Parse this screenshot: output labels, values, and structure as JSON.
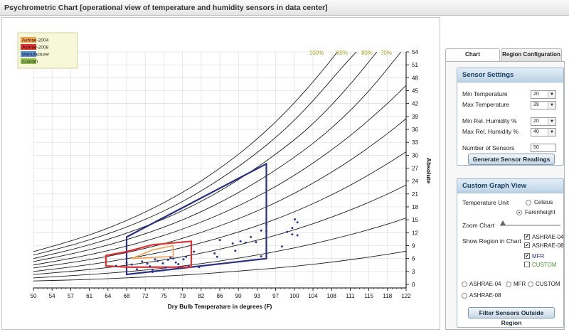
{
  "title": "Psychrometric Chart [operational view of temperature and humidity sensors in data center]",
  "colors": {
    "ashrae2004": "#f0a050",
    "ashrae2008": "#e03232",
    "manufacturer": "#2a2e85",
    "custom": "#90c050",
    "humidity_curve": "#1a1a1a",
    "rh_label": "#a8a820",
    "points": "#2a3a8a"
  },
  "chart_data": {
    "type": "scatter",
    "xlabel": "Dry Bulb Temperature in degrees (F)",
    "ylabel": "Absolute",
    "x_ticks": [
      "50",
      "54",
      "57",
      "61",
      "64",
      "68",
      "72",
      "75",
      "79",
      "82",
      "86",
      "90",
      "93",
      "97",
      "100",
      "104",
      "108",
      "111",
      "115",
      "118",
      "122"
    ],
    "y_ticks": [
      "0",
      "3",
      "6",
      "9",
      "12",
      "15",
      "18",
      "21",
      "24",
      "27",
      "30",
      "33",
      "36",
      "39",
      "42",
      "45",
      "48",
      "51",
      "54"
    ],
    "xlim": [
      50,
      122
    ],
    "ylim": [
      0,
      54
    ],
    "rh_labels": [
      "100%",
      "90%",
      "80%",
      "70%"
    ],
    "legend": [
      {
        "name": "Ashrae-2004",
        "color": "#f0a050"
      },
      {
        "name": "Ashrae-2008",
        "color": "#e03232"
      },
      {
        "name": "Manufacturer",
        "color": "#5b8fd0"
      },
      {
        "name": "Custom",
        "color": "#90c050"
      }
    ],
    "regions": [
      {
        "name": "Manufacturer",
        "color": "#2a2e85",
        "points": [
          [
            68,
            11
          ],
          [
            95,
            28
          ],
          [
            95,
            6
          ],
          [
            68,
            2.3
          ]
        ]
      },
      {
        "name": "Ashrae-2008",
        "color": "#e03232",
        "points": [
          [
            64,
            4.3
          ],
          [
            64,
            6.7
          ],
          [
            68,
            7.6
          ],
          [
            73,
            9.2
          ],
          [
            80.5,
            10
          ],
          [
            80.5,
            4
          ],
          [
            68,
            4
          ],
          [
            64,
            4.3
          ]
        ]
      },
      {
        "name": "Ashrae-2004",
        "color": "#f0a050",
        "points": [
          [
            69,
            6
          ],
          [
            73,
            8
          ],
          [
            77,
            9
          ],
          [
            77,
            6.5
          ],
          [
            69,
            6
          ]
        ]
      }
    ],
    "humidity_curves": [
      {
        "rh": 100,
        "points": [
          [
            50,
            7.6
          ],
          [
            60,
            11.0
          ],
          [
            70,
            15.7
          ],
          [
            80,
            22.0
          ],
          [
            88,
            28.6
          ],
          [
            94,
            34.5
          ],
          [
            100,
            41.5
          ],
          [
            106,
            49.8
          ],
          [
            110,
            56
          ]
        ]
      },
      {
        "rh": 90,
        "points": [
          [
            50,
            6.8
          ],
          [
            60,
            9.9
          ],
          [
            70,
            14.1
          ],
          [
            80,
            19.8
          ],
          [
            90,
            27.5
          ],
          [
            98,
            35.2
          ],
          [
            104,
            42.5
          ],
          [
            110,
            51
          ],
          [
            114,
            56
          ]
        ]
      },
      {
        "rh": 80,
        "points": [
          [
            50,
            6.0
          ],
          [
            60,
            8.8
          ],
          [
            70,
            12.6
          ],
          [
            80,
            17.6
          ],
          [
            90,
            24.4
          ],
          [
            100,
            33.0
          ],
          [
            106,
            39.5
          ],
          [
            112,
            47.5
          ],
          [
            117,
            55
          ]
        ]
      },
      {
        "rh": 70,
        "points": [
          [
            50,
            5.3
          ],
          [
            60,
            7.7
          ],
          [
            70,
            11.0
          ],
          [
            80,
            15.4
          ],
          [
            90,
            21.4
          ],
          [
            100,
            29.0
          ],
          [
            108,
            36.5
          ],
          [
            115,
            45
          ],
          [
            121,
            54
          ]
        ]
      },
      {
        "rh": 60,
        "points": [
          [
            50,
            4.5
          ],
          [
            60,
            6.6
          ],
          [
            70,
            9.4
          ],
          [
            80,
            13.2
          ],
          [
            90,
            18.3
          ],
          [
            100,
            24.8
          ],
          [
            110,
            33.2
          ],
          [
            118,
            41.5
          ],
          [
            122,
            46.2
          ]
        ]
      },
      {
        "rh": 50,
        "points": [
          [
            50,
            3.8
          ],
          [
            60,
            5.5
          ],
          [
            70,
            7.8
          ],
          [
            80,
            11.0
          ],
          [
            90,
            15.3
          ],
          [
            100,
            20.7
          ],
          [
            110,
            27.7
          ],
          [
            118,
            34.6
          ],
          [
            122,
            38.5
          ]
        ]
      },
      {
        "rh": 40,
        "points": [
          [
            50,
            3.0
          ],
          [
            60,
            4.4
          ],
          [
            70,
            6.3
          ],
          [
            80,
            8.8
          ],
          [
            90,
            12.2
          ],
          [
            100,
            16.5
          ],
          [
            110,
            22.1
          ],
          [
            118,
            27.7
          ],
          [
            122,
            30.8
          ]
        ]
      },
      {
        "rh": 30,
        "points": [
          [
            50,
            2.3
          ],
          [
            60,
            3.3
          ],
          [
            70,
            4.7
          ],
          [
            80,
            6.6
          ],
          [
            90,
            9.2
          ],
          [
            100,
            12.4
          ],
          [
            110,
            16.6
          ],
          [
            118,
            20.7
          ],
          [
            122,
            23.1
          ]
        ]
      },
      {
        "rh": 20,
        "points": [
          [
            50,
            1.5
          ],
          [
            60,
            2.2
          ],
          [
            70,
            3.1
          ],
          [
            80,
            4.4
          ],
          [
            90,
            6.1
          ],
          [
            100,
            8.3
          ],
          [
            110,
            11.1
          ],
          [
            118,
            13.8
          ],
          [
            122,
            15.4
          ]
        ]
      },
      {
        "rh": 10,
        "points": [
          [
            50,
            0.8
          ],
          [
            60,
            1.1
          ],
          [
            70,
            1.6
          ],
          [
            80,
            2.2
          ],
          [
            90,
            3.1
          ],
          [
            100,
            4.1
          ],
          [
            110,
            5.5
          ],
          [
            118,
            6.9
          ],
          [
            122,
            7.7
          ]
        ]
      }
    ],
    "sensor_points": [
      [
        66,
        4.3
      ],
      [
        68,
        5.0
      ],
      [
        69,
        4.6
      ],
      [
        70,
        3.5
      ],
      [
        71,
        5.3
      ],
      [
        72,
        4.8
      ],
      [
        72.5,
        4.2
      ],
      [
        73,
        2.9
      ],
      [
        73,
        3.4
      ],
      [
        73.5,
        5.8
      ],
      [
        74,
        5.4
      ],
      [
        75,
        4.9
      ],
      [
        75.5,
        3.9
      ],
      [
        76,
        5.7
      ],
      [
        76.5,
        6.2
      ],
      [
        77,
        6.0
      ],
      [
        77.5,
        5.1
      ],
      [
        78,
        4.7
      ],
      [
        78,
        3.8
      ],
      [
        79,
        5.8
      ],
      [
        79.5,
        6.4
      ],
      [
        80,
        4.3
      ],
      [
        81,
        7.6
      ],
      [
        82,
        4.0
      ],
      [
        85,
        7.2
      ],
      [
        85.5,
        6.4
      ],
      [
        86,
        10.3
      ],
      [
        88.5,
        9.5
      ],
      [
        89,
        7.8
      ],
      [
        90,
        10.0
      ],
      [
        91,
        9.7
      ],
      [
        92,
        11.0
      ],
      [
        93,
        9.8
      ],
      [
        94,
        12.5
      ],
      [
        94,
        6.5
      ],
      [
        95,
        14.0
      ],
      [
        95,
        12.4
      ],
      [
        98,
        8.8
      ],
      [
        99,
        12.2
      ],
      [
        100,
        13.1
      ],
      [
        100,
        11.6
      ],
      [
        100.5,
        15.1
      ],
      [
        101,
        14.4
      ],
      [
        101,
        11.4
      ]
    ]
  },
  "tabs": [
    {
      "label": "Chart Configuration",
      "active": true
    },
    {
      "label": "Region Configuration",
      "active": false
    }
  ],
  "sensor_settings": {
    "heading": "Sensor Settings",
    "min_temp_label": "Min  Temperature",
    "min_temp_value": "20",
    "max_temp_label": "Max  Temperature",
    "max_temp_value": "39",
    "min_rh_label": "Min   Rel. Humidity %",
    "min_rh_value": "20",
    "max_rh_label": "Max  Rel. Humidity %",
    "max_rh_value": "40",
    "num_sensors_label": "Number of Sensors",
    "num_sensors_value": "50",
    "generate_button": "Generate Sensor Readings"
  },
  "custom_graph": {
    "heading": "Custom Graph View",
    "temp_unit_label": "Temperature Unit",
    "celsius": "Celsius",
    "farenheight": "Farenheight",
    "zoom_label": "Zoom Chart",
    "zoom_level": 0.05,
    "show_region_label": "Show Region in Chart",
    "regions": [
      {
        "label": "ASHRAE-04",
        "checked": true
      },
      {
        "label": "ASHRAE-08",
        "checked": true
      },
      {
        "label": "MFR",
        "checked": true
      },
      {
        "label": "CUSTOM",
        "checked": false
      }
    ],
    "filter_options": [
      "ASHRAE-04",
      "MFR",
      "CUSTOM",
      "ASHRAE-08"
    ],
    "filter_button": "Filter Sensors  Outside Region"
  }
}
